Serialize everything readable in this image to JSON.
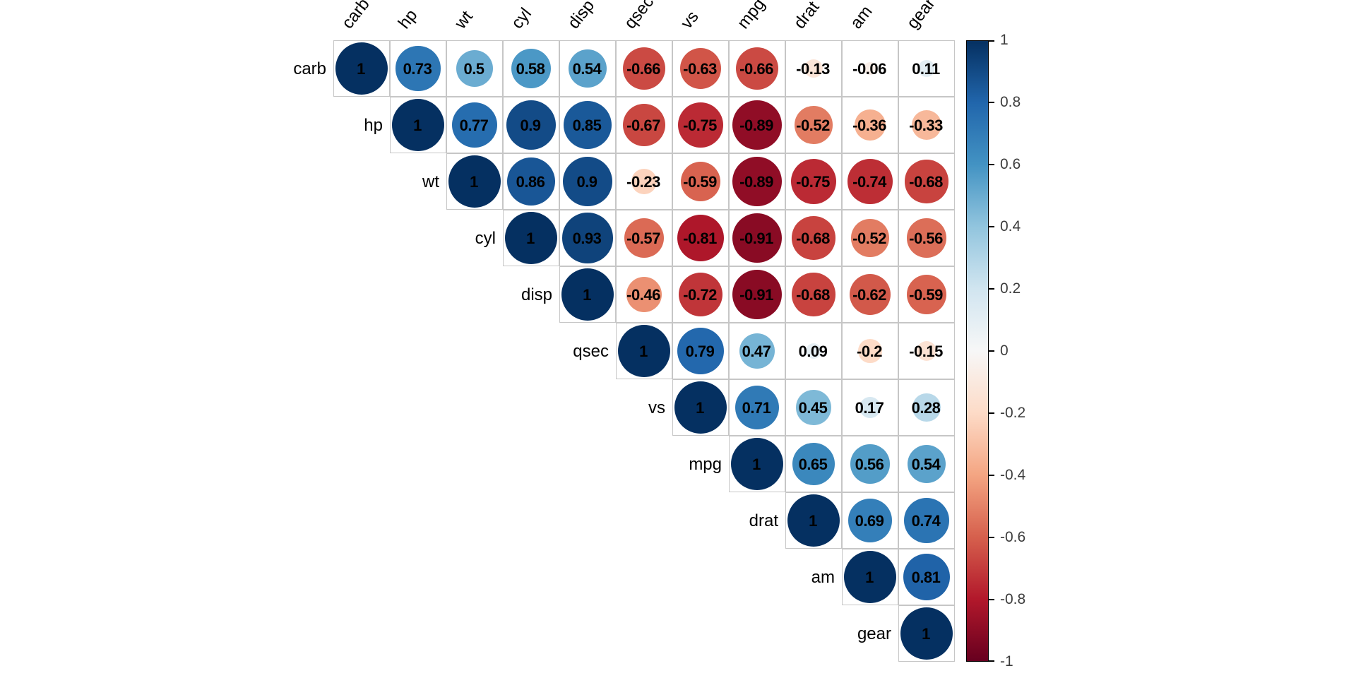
{
  "chart_data": {
    "type": "heatmap",
    "subtype": "correlation-matrix-upper-triangle",
    "title": "",
    "variables": [
      "carb",
      "hp",
      "wt",
      "cyl",
      "disp",
      "qsec",
      "vs",
      "mpg",
      "drat",
      "am",
      "gear"
    ],
    "rows": [
      {
        "var": "carb",
        "values": [
          1,
          0.73,
          0.5,
          0.58,
          0.54,
          -0.66,
          -0.63,
          -0.66,
          -0.13,
          -0.06,
          0.11
        ]
      },
      {
        "var": "hp",
        "values": [
          1,
          0.77,
          0.9,
          0.85,
          -0.67,
          -0.75,
          -0.89,
          -0.52,
          -0.36,
          -0.33
        ]
      },
      {
        "var": "wt",
        "values": [
          1,
          0.86,
          0.9,
          -0.23,
          -0.59,
          -0.89,
          -0.75,
          -0.74,
          -0.68
        ]
      },
      {
        "var": "cyl",
        "values": [
          1,
          0.93,
          -0.57,
          -0.81,
          -0.91,
          -0.68,
          -0.52,
          -0.56
        ]
      },
      {
        "var": "disp",
        "values": [
          1,
          -0.46,
          -0.72,
          -0.91,
          -0.68,
          -0.62,
          -0.59
        ]
      },
      {
        "var": "qsec",
        "values": [
          1,
          0.79,
          0.47,
          0.09,
          -0.2,
          -0.15
        ]
      },
      {
        "var": "vs",
        "values": [
          1,
          0.71,
          0.45,
          0.17,
          0.28
        ]
      },
      {
        "var": "mpg",
        "values": [
          1,
          0.65,
          0.56,
          0.54
        ]
      },
      {
        "var": "drat",
        "values": [
          1,
          0.69,
          0.74
        ]
      },
      {
        "var": "am",
        "values": [
          1,
          0.81
        ]
      },
      {
        "var": "gear",
        "values": [
          1
        ]
      }
    ],
    "value_range": [
      -1,
      1
    ],
    "legend_position": "right",
    "grid": true,
    "colorbar": {
      "ticks": [
        1,
        0.8,
        0.6,
        0.4,
        0.2,
        0,
        -0.2,
        -0.4,
        -0.6,
        -0.8,
        -1
      ],
      "palette_stops": [
        {
          "v": -1.0,
          "color": "#67001f"
        },
        {
          "v": -0.8,
          "color": "#b2182b"
        },
        {
          "v": -0.6,
          "color": "#d6604d"
        },
        {
          "v": -0.4,
          "color": "#f4a582"
        },
        {
          "v": -0.2,
          "color": "#fddbc7"
        },
        {
          "v": 0.0,
          "color": "#f7f7f7"
        },
        {
          "v": 0.2,
          "color": "#d1e5f0"
        },
        {
          "v": 0.4,
          "color": "#92c5de"
        },
        {
          "v": 0.6,
          "color": "#4393c3"
        },
        {
          "v": 0.8,
          "color": "#2166ac"
        },
        {
          "v": 1.0,
          "color": "#053061"
        }
      ]
    },
    "style": {
      "grid_line_color": "#c6c6c6",
      "number_color": "#000000",
      "label_color": "#000000",
      "background": "#ffffff"
    }
  }
}
